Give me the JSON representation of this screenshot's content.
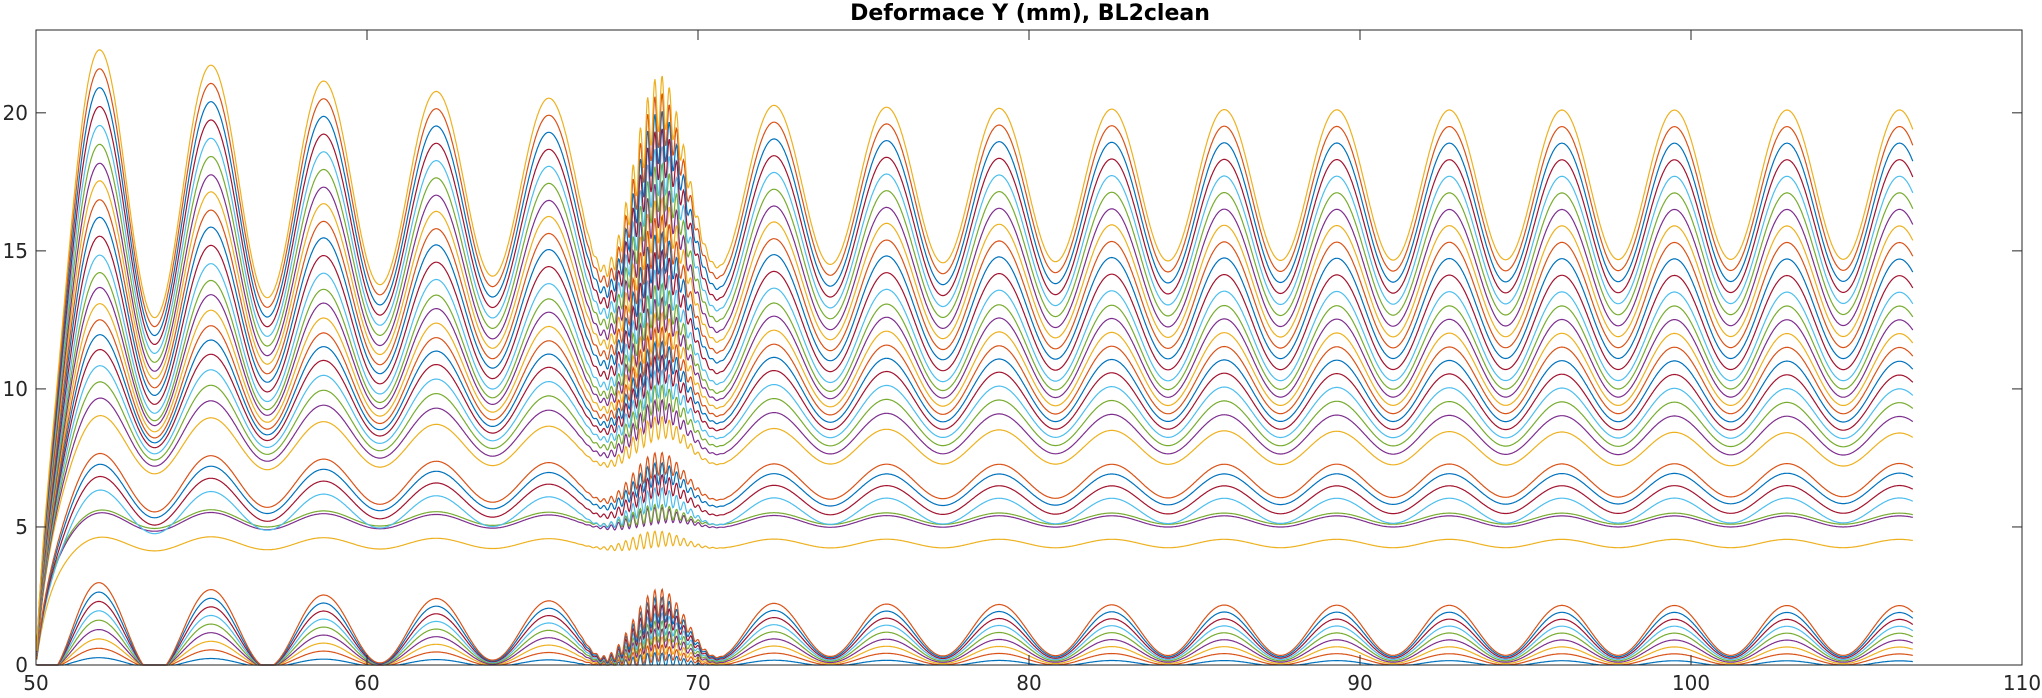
{
  "chart_data": {
    "type": "line",
    "title": "Deformace Y (mm), BL2clean",
    "xlabel": "",
    "ylabel": "",
    "xlim": [
      50,
      110
    ],
    "ylim": [
      0,
      23
    ],
    "xticks": [
      50,
      60,
      70,
      80,
      90,
      100,
      110
    ],
    "xtick_labels": [
      "50",
      "60",
      "70",
      "80",
      "90",
      "100",
      "110"
    ],
    "yticks": [
      0,
      5,
      10,
      15,
      20
    ],
    "ytick_labels": [
      "0",
      "5",
      "10",
      "15",
      "20"
    ],
    "grid": false,
    "legend": "none",
    "x_data_end": 106.7,
    "oscillation_period": 3.4,
    "colors": [
      "#0072BD",
      "#D95319",
      "#EDB120",
      "#7E2F8E",
      "#77AC30",
      "#4DBEEE",
      "#A2142F"
    ],
    "series": [
      {
        "values": [
          0.05,
          0.1,
          0.1
        ]
      },
      {
        "values": [
          0.2,
          0.25,
          0.2
        ]
      },
      {
        "values": [
          0.35,
          0.4,
          0.3
        ]
      },
      {
        "values": [
          0.5,
          0.55,
          0.4
        ]
      },
      {
        "values": [
          0.65,
          0.7,
          0.5
        ]
      },
      {
        "values": [
          0.8,
          0.85,
          0.6
        ]
      },
      {
        "values": [
          0.95,
          1.0,
          0.7
        ]
      },
      {
        "values": [
          1.1,
          1.15,
          0.8
        ]
      },
      {
        "values": [
          1.25,
          1.3,
          0.9
        ]
      },
      {
        "values": [
          4.4,
          4.4,
          0.15
        ]
      },
      {
        "values": [
          5.2,
          5.2,
          0.2
        ]
      },
      {
        "values": [
          5.3,
          5.3,
          0.2
        ]
      },
      {
        "values": [
          5.6,
          5.5,
          0.45
        ]
      },
      {
        "values": [
          6.0,
          5.9,
          0.5
        ]
      },
      {
        "values": [
          6.4,
          6.2,
          0.55
        ]
      },
      {
        "values": [
          6.7,
          6.5,
          0.6
        ]
      },
      {
        "values": [
          7.8,
          8.2,
          0.6
        ]
      },
      {
        "values": [
          8.3,
          8.6,
          0.7
        ]
      },
      {
        "values": [
          8.7,
          9.0,
          0.8
        ]
      },
      {
        "values": [
          9.1,
          9.4,
          0.9
        ]
      },
      {
        "values": [
          9.5,
          9.8,
          1.0
        ]
      },
      {
        "values": [
          9.9,
          10.1,
          1.1
        ]
      },
      {
        "values": [
          10.3,
          10.4,
          1.2
        ]
      },
      {
        "values": [
          10.7,
          10.8,
          1.3
        ]
      },
      {
        "values": [
          11.1,
          11.2,
          1.4
        ]
      },
      {
        "values": [
          11.5,
          11.5,
          1.5
        ]
      },
      {
        "values": [
          11.9,
          12.0,
          1.6
        ]
      },
      {
        "values": [
          12.4,
          12.5,
          1.7
        ]
      },
      {
        "values": [
          12.9,
          13.0,
          1.8
        ]
      },
      {
        "values": [
          13.4,
          13.4,
          1.9
        ]
      },
      {
        "values": [
          13.9,
          13.9,
          2.0
        ]
      },
      {
        "values": [
          14.4,
          14.3,
          2.1
        ]
      },
      {
        "values": [
          14.9,
          14.8,
          2.2
        ]
      },
      {
        "values": [
          15.4,
          15.3,
          2.3
        ]
      },
      {
        "values": [
          15.9,
          15.8,
          2.4
        ]
      },
      {
        "values": [
          16.4,
          16.3,
          2.5
        ]
      },
      {
        "values": [
          16.9,
          16.8,
          2.6
        ]
      },
      {
        "values": [
          17.4,
          17.3,
          2.7
        ]
      }
    ]
  }
}
